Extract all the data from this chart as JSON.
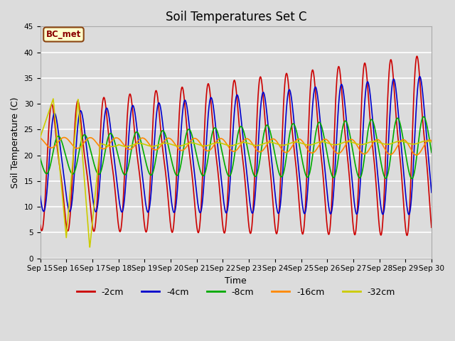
{
  "title": "Soil Temperatures Set C",
  "xlabel": "Time",
  "ylabel": "Soil Temperature (C)",
  "ylim": [
    0,
    45
  ],
  "xlim_days": [
    0,
    15
  ],
  "annotation": "BC_met",
  "background_color": "#dcdcdc",
  "plot_bg_color": "#dcdcdc",
  "grid_color": "#ffffff",
  "legend_labels": [
    "-2cm",
    "-4cm",
    "-8cm",
    "-16cm",
    "-32cm"
  ],
  "legend_colors": [
    "#cc0000",
    "#0000cc",
    "#00aa00",
    "#ff8800",
    "#cccc00"
  ],
  "tick_labels": [
    "Sep 15",
    "Sep 16",
    "Sep 17",
    "Sep 18",
    "Sep 19",
    "Sep 20",
    "Sep 21",
    "Sep 22",
    "Sep 23",
    "Sep 24",
    "Sep 25",
    "Sep 26",
    "Sep 27",
    "Sep 28",
    "Sep 29",
    "Sep 30"
  ],
  "title_fontsize": 12,
  "axis_label_fontsize": 9,
  "tick_fontsize": 7.5,
  "legend_fontsize": 9,
  "n_days": 15,
  "pts_per_day": 144
}
